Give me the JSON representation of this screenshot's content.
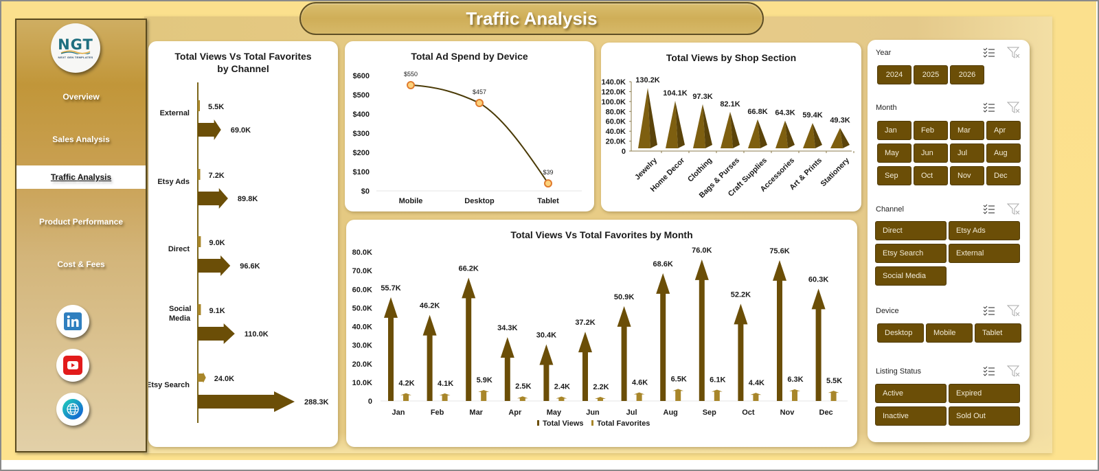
{
  "header": {
    "title": "Traffic Analysis"
  },
  "logo": {
    "main": "NGT",
    "sub": "NEXT GEN TEMPLATES"
  },
  "sidebar": {
    "items": [
      {
        "label": "Overview",
        "active": false
      },
      {
        "label": "Sales Analysis",
        "active": false
      },
      {
        "label": "Traffic Analysis",
        "active": true
      },
      {
        "label": "Product Performance",
        "active": false
      },
      {
        "label": "Cost & Fees",
        "active": false
      }
    ],
    "social": [
      {
        "name": "linkedin-icon",
        "glyph": "in",
        "color": "#2f7fbf"
      },
      {
        "name": "youtube-icon",
        "glyph": "▶",
        "color": "#e21b1b"
      },
      {
        "name": "globe-icon",
        "glyph": "globe",
        "color": "#1e8fd0"
      }
    ]
  },
  "colors": {
    "primary_dark": "#6b4e07",
    "secondary_gold": "#a8862a",
    "line_color": "#4a3a06",
    "marker_fill": "#fcd27c",
    "marker_stroke": "#e07b2e"
  },
  "chart_data": [
    {
      "id": "channel",
      "type": "bar",
      "orientation": "horizontal",
      "title": "Total Views Vs Total Favorites by Channel",
      "categories": [
        "External",
        "Etsy Ads",
        "Direct",
        "Social Media",
        "Etsy Search"
      ],
      "series": [
        {
          "name": "Total Favorites",
          "values": [
            5.5,
            7.2,
            9.0,
            9.1,
            24.0
          ],
          "labels": [
            "5.5K",
            "7.2K",
            "9.0K",
            "9.1K",
            "24.0K"
          ]
        },
        {
          "name": "Total Views",
          "values": [
            69.0,
            89.8,
            96.6,
            110.0,
            288.3
          ],
          "labels": [
            "69.0K",
            "89.8K",
            "96.6K",
            "110.0K",
            "288.3K"
          ]
        }
      ],
      "unit": "K"
    },
    {
      "id": "adspend",
      "type": "line",
      "title": "Total Ad Spend by Device",
      "categories": [
        "Mobile",
        "Desktop",
        "Tablet"
      ],
      "values": [
        550,
        457,
        39
      ],
      "labels": [
        "$550",
        "$457",
        "$39"
      ],
      "yticks": [
        "$0",
        "$100",
        "$200",
        "$300",
        "$400",
        "$500",
        "$600"
      ],
      "ylim": [
        0,
        600
      ]
    },
    {
      "id": "shop",
      "type": "bar",
      "shape": "pyramid",
      "title": "Total Views by Shop Section",
      "categories": [
        "Jewelry",
        "Home Decor",
        "Clothing",
        "Bags & Purses",
        "Craft Supplies",
        "Accessories",
        "Art & Prints",
        "Stationery"
      ],
      "values": [
        130.2,
        104.1,
        97.3,
        82.1,
        66.8,
        64.3,
        59.4,
        49.3
      ],
      "labels": [
        "130.2K",
        "104.1K",
        "97.3K",
        "82.1K",
        "66.8K",
        "64.3K",
        "59.4K",
        "49.3K"
      ],
      "yticks": [
        "0",
        "20.0K",
        "40.0K",
        "60.0K",
        "80.0K",
        "100.0K",
        "120.0K",
        "140.0K"
      ],
      "ylim": [
        0,
        140
      ]
    },
    {
      "id": "month",
      "type": "bar",
      "shape": "arrow",
      "title": "Total Views Vs Total Favorites by Month",
      "categories": [
        "Jan",
        "Feb",
        "Mar",
        "Apr",
        "May",
        "Jun",
        "Jul",
        "Aug",
        "Sep",
        "Oct",
        "Nov",
        "Dec"
      ],
      "series": [
        {
          "name": "Total Views",
          "values": [
            55.7,
            46.2,
            66.2,
            34.3,
            30.4,
            37.2,
            50.9,
            68.6,
            76.0,
            52.2,
            75.6,
            60.3
          ],
          "labels": [
            "55.7K",
            "46.2K",
            "66.2K",
            "34.3K",
            "30.4K",
            "37.2K",
            "50.9K",
            "68.6K",
            "76.0K",
            "52.2K",
            "75.6K",
            "60.3K"
          ]
        },
        {
          "name": "Total Favorites",
          "values": [
            4.2,
            4.1,
            5.9,
            2.5,
            2.4,
            2.2,
            4.6,
            6.5,
            6.1,
            4.4,
            6.3,
            5.5
          ],
          "labels": [
            "4.2K",
            "4.1K",
            "5.9K",
            "2.5K",
            "2.4K",
            "2.2K",
            "4.6K",
            "6.5K",
            "6.1K",
            "4.4K",
            "6.3K",
            "5.5K"
          ]
        }
      ],
      "yticks": [
        "0",
        "10.0K",
        "20.0K",
        "30.0K",
        "40.0K",
        "50.0K",
        "60.0K",
        "70.0K",
        "80.0K"
      ],
      "ylim": [
        0,
        80
      ],
      "legend": [
        "Total Views",
        "Total Favorites"
      ],
      "legend_position": "bottom"
    }
  ],
  "slicers": {
    "year": {
      "label": "Year",
      "options": [
        "2024",
        "2025",
        "2026"
      ]
    },
    "month": {
      "label": "Month",
      "options": [
        "Jan",
        "Feb",
        "Mar",
        "Apr",
        "May",
        "Jun",
        "Jul",
        "Aug",
        "Sep",
        "Oct",
        "Nov",
        "Dec"
      ]
    },
    "channel": {
      "label": "Channel",
      "options": [
        "Direct",
        "Etsy Ads",
        "Etsy Search",
        "External",
        "Social Media"
      ]
    },
    "device": {
      "label": "Device",
      "options": [
        "Desktop",
        "Mobile",
        "Tablet"
      ]
    },
    "listing_status": {
      "label": "Listing Status",
      "options": [
        "Active",
        "Expired",
        "Inactive",
        "Sold Out"
      ]
    }
  }
}
